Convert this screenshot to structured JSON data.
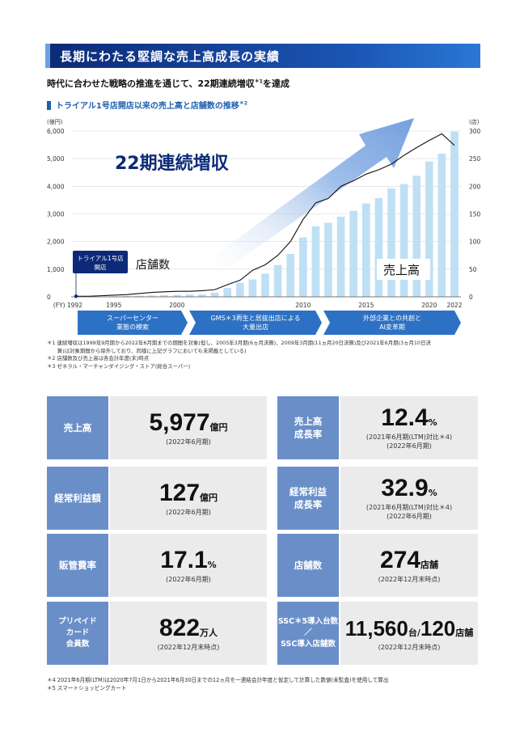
{
  "header": {
    "title": "長期にわたる堅調な売上高成長の実績"
  },
  "subtitle": {
    "text": "時代に合わせた戦略の推進を通じて、22期連続増収",
    "sup": "＊1",
    "tail": "を達成"
  },
  "chart_heading": {
    "text": "トライアル1号店開店以来の売上高と店舗数の推移",
    "sup": "＊2"
  },
  "chart_data": {
    "type": "bar",
    "x": [
      1992,
      1993,
      1994,
      1995,
      1996,
      1997,
      1998,
      1999,
      2000,
      2001,
      2002,
      2003,
      2004,
      2005,
      2006,
      2007,
      2008,
      2009,
      2010,
      2011,
      2012,
      2013,
      2014,
      2015,
      2016,
      2017,
      2018,
      2019,
      2020,
      2021,
      2022
    ],
    "x_ticks": [
      "(FY) 1992",
      "1995",
      "2000",
      "2010",
      "2015",
      "2020",
      "2022"
    ],
    "series": [
      {
        "name": "売上高",
        "values": [
          5,
          10,
          15,
          20,
          30,
          40,
          50,
          60,
          70,
          80,
          90,
          150,
          320,
          500,
          630,
          840,
          1150,
          1550,
          2150,
          2550,
          2680,
          2900,
          3110,
          3380,
          3570,
          3920,
          4080,
          4380,
          4900,
          5180,
          5977
        ]
      },
      {
        "name": "店舗数",
        "values": [
          1,
          1,
          2,
          3,
          4,
          6,
          8,
          9,
          10,
          10,
          11,
          13,
          22,
          30,
          48,
          58,
          75,
          100,
          140,
          170,
          178,
          200,
          210,
          222,
          230,
          240,
          256,
          270,
          283,
          295,
          274
        ]
      }
    ],
    "y_left": {
      "unit": "(億円)",
      "ticks": [
        "0",
        "1,000",
        "2,000",
        "3,000",
        "4,000",
        "5,000",
        "6,000"
      ],
      "range": [
        0,
        6000
      ]
    },
    "y_right": {
      "unit": "(店)",
      "ticks": [
        "0",
        "50",
        "100",
        "150",
        "200",
        "250",
        "300"
      ],
      "range": [
        0,
        300
      ]
    },
    "annotations": {
      "streak": "22期連続増収",
      "stores": "店舗数",
      "sales": "売上高",
      "first_store": "トライアル1号店\n開店"
    },
    "phases": [
      "スーパーセンター\n業態の模索",
      "GMS＊3再生と居抜出店による\n大量出店",
      "外部企業との共創と\nAI変革期"
    ]
  },
  "notes": [
    "＊1 連続増収は1999年9月期から2022年6月期までの期間を対象(但し、2005年3月期(6ヵ月決算)、2009年3月期(11ヵ月20日決算)及び2021年6月期(3ヵ月10日決",
    "　　算)は対象期間から除外しており、同様に上記グラフにおいても未掲載としている)",
    "＊2 店舗数及び売上高は各会計年度(末)時点",
    "＊3 ゼネラル・マーチャンダイジング・ストア(総合スーパー)"
  ],
  "kpis": [
    {
      "label": "売上高",
      "value": "5,977",
      "unit": "億円",
      "note": "(2022年6月期)"
    },
    {
      "label": "売上高\n成長率",
      "value": "12.4",
      "unit": "%",
      "note": "(2021年6月期(LTM)対比＊4)\n(2022年6月期)"
    },
    {
      "label": "経常利益額",
      "value": "127",
      "unit": "億円",
      "note": "(2022年6月期)"
    },
    {
      "label": "経常利益\n成長率",
      "value": "32.9",
      "unit": "%",
      "note": "(2021年6月期(LTM)対比＊4)\n(2022年6月期)"
    },
    {
      "label": "販管費率",
      "value": "17.1",
      "unit": "%",
      "note": "(2022年6月期)"
    },
    {
      "label": "店舗数",
      "value": "274",
      "unit": "店舗",
      "note": "(2022年12月末時点)"
    },
    {
      "label": "プリペイド\nカード\n会員数",
      "value": "822",
      "unit": "万人",
      "note": "(2022年12月末時点)"
    },
    {
      "label": "SSC＊5導入台数／\nSSC導入店舗数",
      "value": "11,560",
      "unit": "台/",
      "value2": "120",
      "unit2": "店舗",
      "note": "(2022年12月末時点)"
    }
  ],
  "footnotes": [
    "＊4 2021年6月期(LTM)は2020年7月1日から2021年6月30日までの12ヵ月を一連結会計年度と仮定して計算した数値(未監査)を使用して算出",
    "＊5 スマートショッピングカート"
  ],
  "colors": {
    "navy": "#0c2a78",
    "label_blue": "#6a8fc8",
    "bar": "#bfe0f4",
    "arrow": "#6a97d8",
    "phase": "#2d71c4"
  }
}
